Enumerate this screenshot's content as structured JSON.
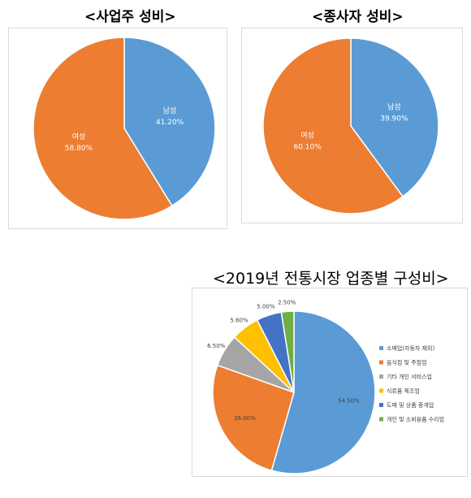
{
  "chart_data": [
    {
      "type": "pie",
      "title": "<사업주 성비>",
      "categories": [
        "남성",
        "여성"
      ],
      "values": [
        41.2,
        58.8
      ],
      "labels": [
        "41.20%",
        "58.80%"
      ],
      "colors": [
        "#5b9bd5",
        "#ed7d31"
      ]
    },
    {
      "type": "pie",
      "title": "<종사자 성비>",
      "categories": [
        "남성",
        "여성"
      ],
      "values": [
        39.9,
        60.1
      ],
      "labels": [
        "39.90%",
        "60.10%"
      ],
      "colors": [
        "#5b9bd5",
        "#ed7d31"
      ]
    },
    {
      "type": "pie",
      "title": "<2019년 전통시장 업종별 구성비>",
      "categories": [
        "소매업(자동차 제외)",
        "음식점 및 주점업",
        "기타 개인 서비스업",
        "식료품 제조업",
        "도매 및 상품 중개업",
        "개인 및 소비용품 수리업"
      ],
      "values": [
        54.5,
        26.0,
        6.5,
        5.6,
        5.0,
        2.5
      ],
      "labels": [
        "54.50%",
        "26.00%",
        "6.50%",
        "5.60%",
        "5.00%",
        "2.50%"
      ],
      "colors": [
        "#5b9bd5",
        "#ed7d31",
        "#a5a5a5",
        "#ffc000",
        "#4472c4",
        "#70ad47"
      ],
      "legend": "right"
    }
  ]
}
